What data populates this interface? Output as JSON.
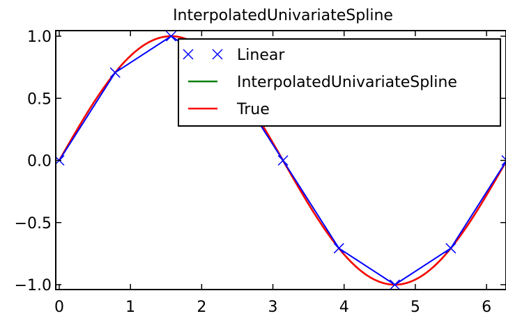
{
  "chart_data": {
    "type": "line",
    "title": "InterpolatedUnivariateSpline",
    "xlabel": "",
    "ylabel": "",
    "xlim": [
      0,
      6.283
    ],
    "ylim": [
      -1.05,
      1.05
    ],
    "x_ticks": [
      0,
      1,
      2,
      3,
      4,
      5,
      6
    ],
    "x_tick_labels": [
      "0",
      "1",
      "2",
      "3",
      "4",
      "5",
      "6"
    ],
    "y_ticks": [
      1.0,
      0.5,
      0.0,
      -0.5,
      -1.0
    ],
    "y_tick_labels": [
      "1.0",
      "0.5",
      "0.0",
      "−0.5",
      "−1.0"
    ],
    "grid": false,
    "legend_position": "upper right",
    "series": [
      {
        "name": "Linear",
        "style": "line with x markers",
        "color": "#0000ff",
        "x": [
          0,
          0.785,
          1.571,
          2.356,
          3.142,
          3.927,
          4.712,
          5.498,
          6.283
        ],
        "y": [
          0,
          0.707,
          1.0,
          0.707,
          0.0,
          -0.707,
          -1.0,
          -0.707,
          0.0
        ]
      },
      {
        "name": "InterpolatedUnivariateSpline",
        "style": "line",
        "color": "#008000",
        "function": "sin(x)",
        "x_range": [
          0,
          6.283
        ]
      },
      {
        "name": "True",
        "style": "line",
        "color": "#ff0000",
        "function": "sin(x)",
        "x_range": [
          0,
          6.283
        ]
      }
    ]
  }
}
